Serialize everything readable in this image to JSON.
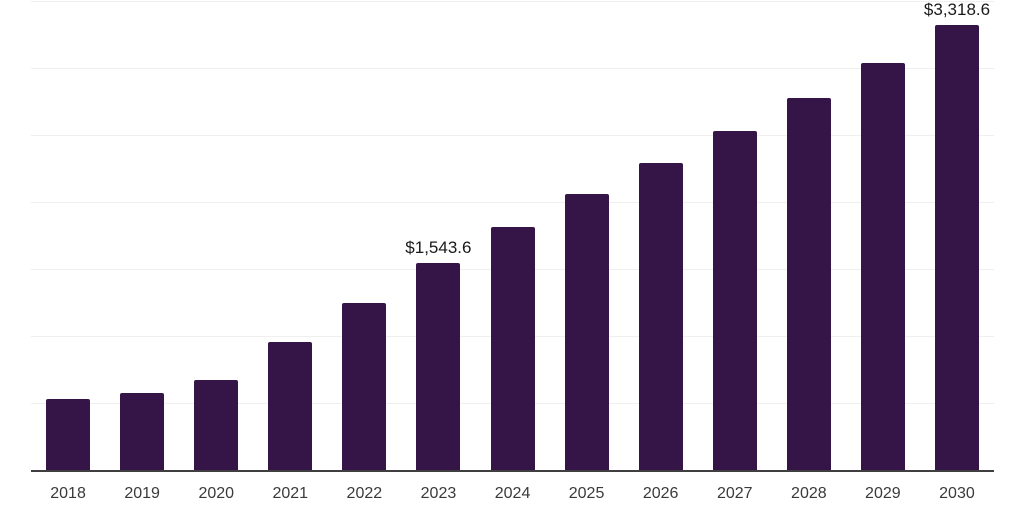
{
  "chart_data": {
    "type": "bar",
    "title": "",
    "xlabel": "",
    "ylabel": "",
    "categories": [
      "2018",
      "2019",
      "2020",
      "2021",
      "2022",
      "2023",
      "2024",
      "2025",
      "2026",
      "2027",
      "2028",
      "2029",
      "2030"
    ],
    "values": [
      529,
      574,
      671,
      952,
      1245,
      1543.6,
      1812,
      2058,
      2290,
      2528,
      2774,
      3035,
      3318.6
    ],
    "data_labels": {
      "2023": "$1,543.6",
      "2030": "$3,318.6"
    },
    "ylim": [
      0,
      3500
    ],
    "gridline_step": 500,
    "grid": "horizontal-only, no y-axis tick labels",
    "legend": "none",
    "colors": {
      "bar": "#351448",
      "data_label": "#1a1a1a",
      "x_axis_label": "#3a3a3a",
      "gridline": "#efefef",
      "axis_line": "#3f3f3f",
      "background": "#ffffff"
    }
  }
}
